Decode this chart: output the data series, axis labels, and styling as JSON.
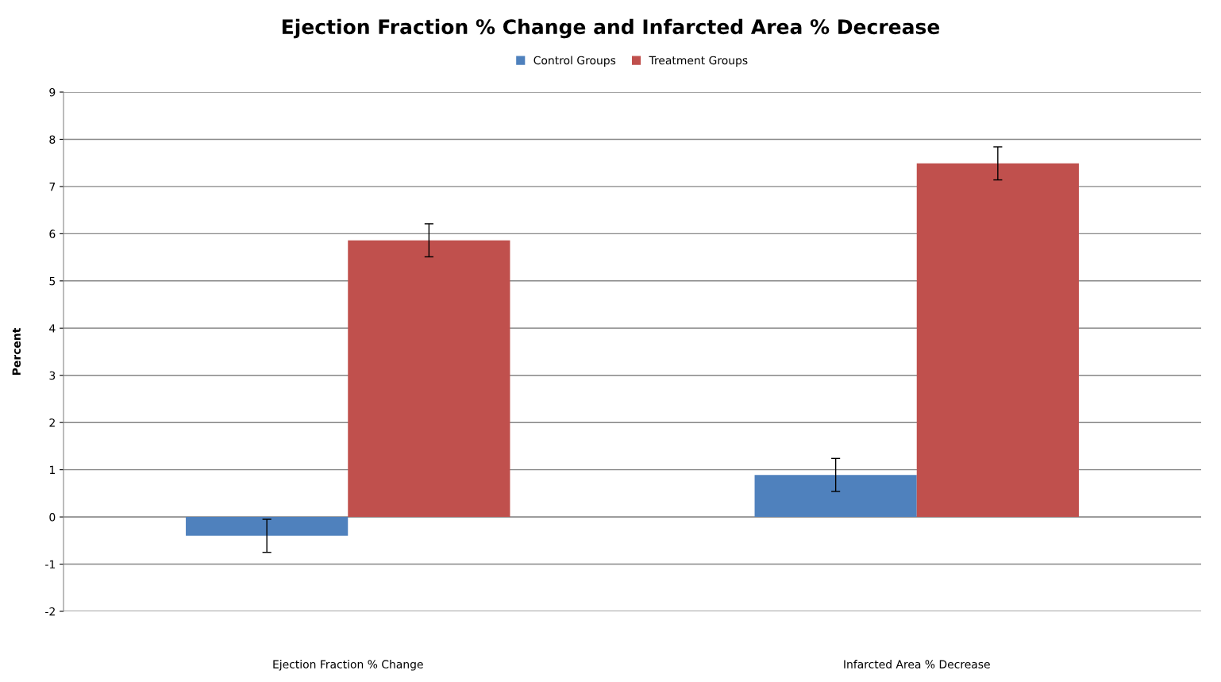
{
  "chart_data": {
    "type": "bar",
    "title": "Ejection Fraction % Change and Infarcted Area % Decrease",
    "ylabel": "Percent",
    "categories": [
      "Ejection Fraction % Change",
      "Infarcted Area % Decrease"
    ],
    "series": [
      {
        "name": "Control Groups",
        "color": "#4f81bd",
        "values": [
          -0.4,
          0.89
        ],
        "errors": [
          0.35,
          0.35
        ]
      },
      {
        "name": "Treatment Groups",
        "color": "#c0504d",
        "values": [
          5.86,
          7.49
        ],
        "errors": [
          0.35,
          0.35
        ]
      }
    ],
    "ylim": [
      -2,
      9
    ],
    "yticks": [
      -2,
      -1,
      0,
      1,
      2,
      3,
      4,
      5,
      6,
      7,
      8,
      9
    ],
    "grid": "y",
    "legend": "top"
  }
}
